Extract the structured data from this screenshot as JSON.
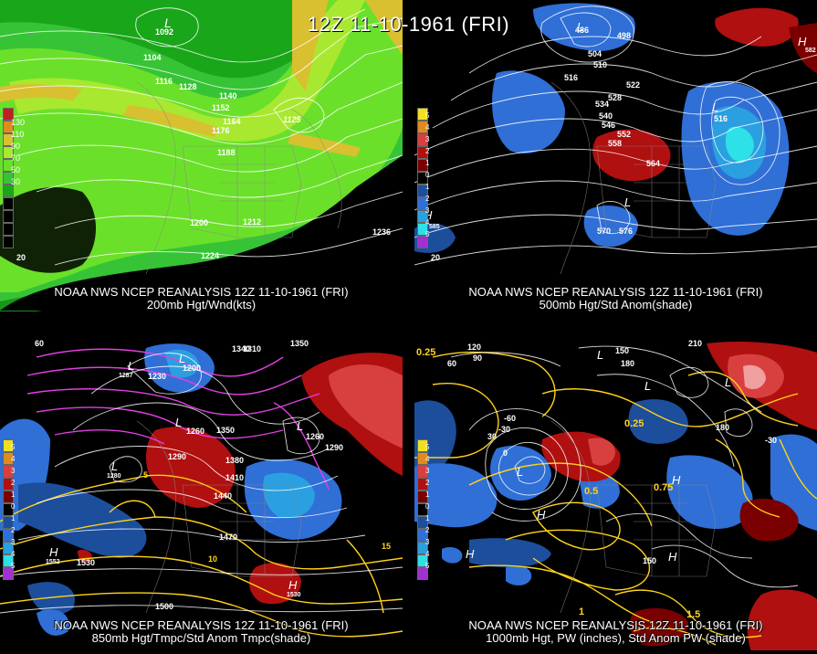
{
  "title": "12Z 11-10-1961 (FRI)",
  "panels": [
    {
      "caption_line1": "NOAA NWS NCEP REANALYSIS 12Z 11-10-1961 (FRI)",
      "caption_line2": "200mb Hgt/Wnd(kts)",
      "legend_labels": [
        "130",
        "110",
        "90",
        "70",
        "50",
        "30"
      ],
      "contour_labels": [
        "1092",
        "1104",
        "1116",
        "1128",
        "1140",
        "1152",
        "1164",
        "1176",
        "1188",
        "1200",
        "1212",
        "1224",
        "1236",
        "1125",
        "20"
      ],
      "pressure_centers": [
        "L"
      ]
    },
    {
      "caption_line1": "NOAA NWS NCEP REANALYSIS 12Z 11-10-1961 (FRI)",
      "caption_line2": "500mb Hgt/Std Anom(shade)",
      "legend_labels": [
        "5",
        "4",
        "3",
        "2",
        "1",
        "0",
        "1",
        "2",
        "3",
        "4",
        "5"
      ],
      "contour_labels": [
        "486",
        "498",
        "504",
        "510",
        "516",
        "522",
        "528",
        "534",
        "540",
        "546",
        "552",
        "558",
        "564",
        "570",
        "576",
        "516",
        "585",
        "582",
        "20"
      ],
      "pressure_centers": [
        "L",
        "L",
        "H",
        "H",
        "H",
        "L"
      ]
    },
    {
      "caption_line1": "NOAA NWS NCEP REANALYSIS 12Z 11-10-1961 (FRI)",
      "caption_line2": "850mb Hgt/Tmpc/Std Anom Tmpc(shade)",
      "legend_labels": [
        "5",
        "4",
        "3",
        "2",
        "1",
        "0",
        "1",
        "2",
        "3",
        "4",
        "5"
      ],
      "contour_labels": [
        "1350",
        "1340",
        "1310",
        "1287",
        "1230",
        "1200",
        "1260",
        "1290",
        "1350",
        "1380",
        "1410",
        "1440",
        "1470",
        "1500",
        "1530",
        "1552",
        "1530",
        "1260",
        "1290",
        "1280",
        "10",
        "15",
        "5",
        "60"
      ],
      "pressure_centers": [
        "L",
        "L",
        "L",
        "L",
        "L",
        "H",
        "H"
      ]
    },
    {
      "caption_line1": "NOAA NWS NCEP REANALYSIS 12Z 11-10-1961 (FRI)",
      "caption_line2": "1000mb Hgt, PW (inches), Std Anom PW (shade)",
      "legend_labels": [
        "5",
        "4",
        "3",
        "2",
        "1",
        "0",
        "1",
        "2",
        "3",
        "4",
        "5"
      ],
      "contour_labels": [
        "0.25",
        "120",
        "90",
        "60",
        "30",
        "0",
        "-30",
        "-60",
        "150",
        "210",
        "180",
        "0.25",
        "0.5",
        "0.75",
        "1",
        "1.5",
        "-30",
        "150",
        "180"
      ],
      "pressure_centers": [
        "L",
        "L",
        "L",
        "L",
        "H",
        "H",
        "H",
        "H"
      ]
    }
  ],
  "colors": {
    "wind_30": "#1aa61a",
    "wind_50": "#36c436",
    "wind_70": "#6be02a",
    "wind_90": "#a8e830",
    "wind_110": "#d8c030",
    "wind_130": "#e08a20",
    "anom_pos_1": "#7a0000",
    "anom_pos_2": "#b01010",
    "anom_pos_3": "#d84040",
    "anom_neg_1": "#1c4e9c",
    "anom_neg_2": "#2f6fd6",
    "anom_neg_3": "#2ee0e8",
    "contour": "#ffffff",
    "temp_contour": "#ffd21a",
    "neg_temp_contour": "#e040e0"
  }
}
